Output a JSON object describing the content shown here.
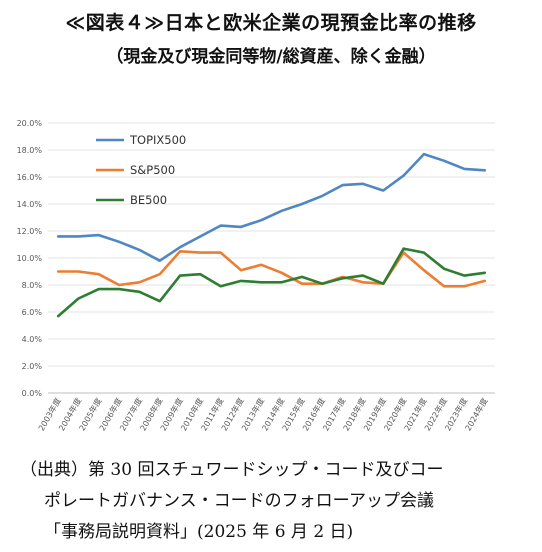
{
  "header": {
    "title": "≪図表４≫日本と欧米企業の現預金比率の推移",
    "subtitle": "（現金及び現金同等物/総資産、除く金融）"
  },
  "source": {
    "line1": "（出典）第 30 回スチュワードシップ・コード及びコー",
    "line2": "ポレートガバナンス・コードのフォローアップ会議",
    "line3": "「事務局説明資料」(2025 年 6 月 2 日)"
  },
  "chart_data": {
    "type": "line",
    "x": [
      "2003年度",
      "2004年度",
      "2005年度",
      "2006年度",
      "2007年度",
      "2008年度",
      "2009年度",
      "2010年度",
      "2011年度",
      "2012年度",
      "2013年度",
      "2014年度",
      "2015年度",
      "2016年度",
      "2017年度",
      "2018年度",
      "2019年度",
      "2020年度",
      "2021年度",
      "2022年度",
      "2023年度",
      "2024年度"
    ],
    "ylim": [
      0,
      20
    ],
    "yticks": [
      "0.0%",
      "2.0%",
      "4.0%",
      "6.0%",
      "8.0%",
      "10.0%",
      "12.0%",
      "14.0%",
      "16.0%",
      "18.0%",
      "20.0%"
    ],
    "grid": true,
    "legend_position": "top-left",
    "series": [
      {
        "name": "TOPIX500",
        "color": "#4f86c6",
        "values": [
          11.6,
          11.6,
          11.7,
          11.2,
          10.6,
          9.8,
          10.8,
          11.6,
          12.4,
          12.3,
          12.8,
          13.5,
          14.0,
          14.6,
          15.4,
          15.5,
          15.0,
          16.1,
          17.7,
          17.2,
          16.6,
          16.5
        ]
      },
      {
        "name": "S&P500",
        "color": "#ed7d31",
        "values": [
          9.0,
          9.0,
          8.8,
          8.0,
          8.2,
          8.8,
          10.5,
          10.4,
          10.4,
          9.1,
          9.5,
          8.9,
          8.1,
          8.1,
          8.6,
          8.2,
          8.1,
          10.4,
          9.1,
          7.9,
          7.9,
          8.3
        ]
      },
      {
        "name": "BE500",
        "color": "#2e7d32",
        "values": [
          5.7,
          7.0,
          7.7,
          7.7,
          7.5,
          6.8,
          8.7,
          8.8,
          7.9,
          8.3,
          8.2,
          8.2,
          8.6,
          8.1,
          8.5,
          8.7,
          8.1,
          10.7,
          10.4,
          9.2,
          8.7,
          8.9
        ]
      }
    ]
  }
}
